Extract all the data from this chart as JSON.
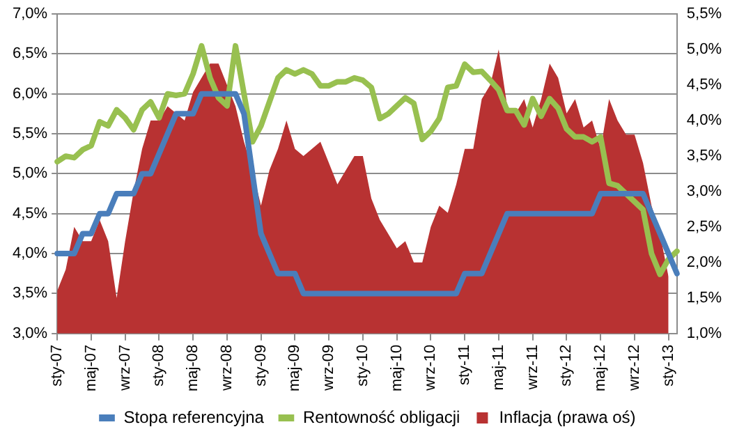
{
  "chart_data": {
    "type": "line",
    "categories": [
      "sty-07",
      null,
      null,
      null,
      "maj-07",
      null,
      null,
      null,
      "wrz-07",
      null,
      null,
      null,
      "sty-08",
      null,
      null,
      null,
      "maj-08",
      null,
      null,
      null,
      "wrz-08",
      null,
      null,
      null,
      "sty-09",
      null,
      null,
      null,
      "maj-09",
      null,
      null,
      null,
      "wrz-09",
      null,
      null,
      null,
      "sty-10",
      null,
      null,
      null,
      "maj-10",
      null,
      null,
      null,
      "wrz-10",
      null,
      null,
      null,
      "sty-11",
      null,
      null,
      null,
      "maj-11",
      null,
      null,
      null,
      "wrz-11",
      null,
      null,
      null,
      "sty-12",
      null,
      null,
      null,
      "maj-12",
      null,
      null,
      null,
      "wrz-12",
      null,
      null,
      null,
      "sty-13",
      null
    ],
    "series": [
      {
        "name": "Stopa referencyjna",
        "type": "line",
        "color": "#4a7ebb",
        "values": [
          4.0,
          4.0,
          4.0,
          4.25,
          4.25,
          4.5,
          4.5,
          4.75,
          4.75,
          4.75,
          5.0,
          5.0,
          5.25,
          5.5,
          5.75,
          5.75,
          5.75,
          6.0,
          6.0,
          6.0,
          6.0,
          6.0,
          5.75,
          5.0,
          4.25,
          4.0,
          3.75,
          3.75,
          3.75,
          3.5,
          3.5,
          3.5,
          3.5,
          3.5,
          3.5,
          3.5,
          3.5,
          3.5,
          3.5,
          3.5,
          3.5,
          3.5,
          3.5,
          3.5,
          3.5,
          3.5,
          3.5,
          3.5,
          3.75,
          3.75,
          3.75,
          4.0,
          4.25,
          4.5,
          4.5,
          4.5,
          4.5,
          4.5,
          4.5,
          4.5,
          4.5,
          4.5,
          4.5,
          4.5,
          4.75,
          4.75,
          4.75,
          4.75,
          4.75,
          4.75,
          4.5,
          4.25,
          4.0,
          3.75
        ]
      },
      {
        "name": "Rentowność obligacji",
        "type": "line",
        "color": "#98c050",
        "values": [
          5.15,
          5.22,
          5.2,
          5.3,
          5.35,
          5.65,
          5.6,
          5.8,
          5.7,
          5.55,
          5.8,
          5.9,
          5.7,
          6.0,
          5.98,
          6.0,
          6.25,
          6.6,
          6.2,
          5.95,
          5.85,
          6.6,
          6.0,
          5.4,
          5.6,
          5.9,
          6.2,
          6.3,
          6.25,
          6.3,
          6.25,
          6.1,
          6.1,
          6.15,
          6.15,
          6.2,
          6.17,
          6.08,
          5.69,
          5.75,
          5.85,
          5.95,
          5.88,
          5.43,
          5.53,
          5.69,
          6.08,
          6.1,
          6.37,
          6.27,
          6.28,
          6.17,
          6.05,
          5.79,
          5.79,
          5.61,
          5.94,
          5.72,
          5.94,
          5.82,
          5.56,
          5.46,
          5.46,
          5.4,
          5.46,
          4.88,
          4.85,
          4.75,
          4.65,
          4.55,
          4.0,
          3.74,
          3.93,
          4.03
        ]
      },
      {
        "name": "Inflacja (prawa oś)",
        "type": "area",
        "axis": "y2",
        "color": "#b83232",
        "values": [
          1.6,
          1.9,
          2.5,
          2.3,
          2.3,
          2.6,
          2.3,
          1.5,
          2.3,
          3.0,
          3.6,
          4.0,
          4.0,
          4.2,
          4.1,
          4.0,
          4.4,
          4.6,
          4.8,
          4.8,
          4.5,
          4.2,
          3.7,
          3.3,
          2.8,
          3.3,
          3.6,
          4.0,
          3.6,
          3.5,
          3.6,
          3.7,
          3.4,
          3.1,
          3.3,
          3.5,
          3.5,
          2.9,
          2.6,
          2.4,
          2.2,
          2.3,
          2.0,
          2.0,
          2.5,
          2.8,
          2.7,
          3.1,
          3.6,
          3.6,
          4.3,
          4.5,
          5.0,
          4.2,
          4.1,
          4.3,
          3.9,
          4.3,
          4.8,
          4.6,
          4.1,
          4.3,
          3.9,
          4.0,
          3.6,
          4.3,
          4.0,
          3.8,
          3.8,
          3.4,
          2.8,
          2.4,
          1.8,
          null
        ]
      }
    ],
    "ylim": [
      3,
      7
    ],
    "yticks": [
      {
        "value": 3,
        "label": "3,0%"
      },
      {
        "value": 3.5,
        "label": "3,5%"
      },
      {
        "value": 4,
        "label": "4,0%"
      },
      {
        "value": 4.5,
        "label": "4,5%"
      },
      {
        "value": 5,
        "label": "5,0%"
      },
      {
        "value": 5.5,
        "label": "5,5%"
      },
      {
        "value": 6,
        "label": "6,0%"
      },
      {
        "value": 6.5,
        "label": "6,5%"
      },
      {
        "value": 7,
        "label": "7,0%"
      }
    ],
    "y2lim": [
      1,
      5.5
    ],
    "y2ticks": [
      {
        "value": 1,
        "label": "1,0%"
      },
      {
        "value": 1.5,
        "label": "1,5%"
      },
      {
        "value": 2,
        "label": "2,0%"
      },
      {
        "value": 2.5,
        "label": "2,5%"
      },
      {
        "value": 3,
        "label": "3,0%"
      },
      {
        "value": 3.5,
        "label": "3,5%"
      },
      {
        "value": 4,
        "label": "4,0%"
      },
      {
        "value": 4.5,
        "label": "4,5%"
      },
      {
        "value": 5,
        "label": "5,0%"
      },
      {
        "value": 5.5,
        "label": "5,5%"
      }
    ],
    "grid": "y",
    "legend": "bottom",
    "marker": "none",
    "line_style": "solid"
  }
}
